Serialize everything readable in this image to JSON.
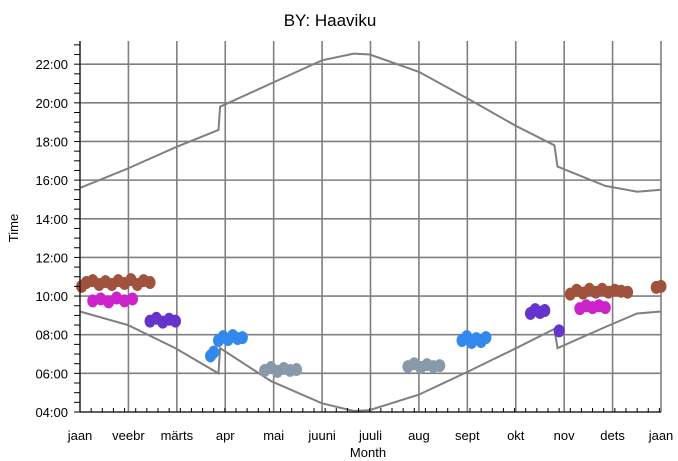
{
  "chart_data": {
    "type": "scatter",
    "title": "BY: Haaviku",
    "xlabel": "Month",
    "ylabel": "Time",
    "x_ticks": [
      "jaan",
      "veebr",
      "märts",
      "apr",
      "mai",
      "juuni",
      "juuli",
      "aug",
      "sept",
      "okt",
      "nov",
      "dets",
      "jaan"
    ],
    "y_ticks": [
      "04:00",
      "06:00",
      "08:00",
      "10:00",
      "12:00",
      "14:00",
      "16:00",
      "18:00",
      "20:00",
      "22:00"
    ],
    "xlim_days": [
      0,
      365
    ],
    "ylim_hours": [
      4,
      23.2
    ],
    "grid": true,
    "colors": {
      "grid": "#7f7f7f",
      "curves": "#7f7f7f",
      "brown": "#a0523c",
      "magenta": "#cc22cc",
      "purple": "#6633cc",
      "blue": "#3388ee",
      "gray": "#8899aa"
    },
    "sunset_curve": [
      [
        0,
        15.6
      ],
      [
        30,
        16.6
      ],
      [
        60,
        17.7
      ],
      [
        87,
        18.6
      ],
      [
        88,
        19.8
      ],
      [
        120,
        21.0
      ],
      [
        152,
        22.2
      ],
      [
        172,
        22.55
      ],
      [
        182,
        22.5
      ],
      [
        213,
        21.6
      ],
      [
        244,
        20.2
      ],
      [
        274,
        18.8
      ],
      [
        298,
        17.8
      ],
      [
        300,
        16.7
      ],
      [
        330,
        15.7
      ],
      [
        350,
        15.4
      ],
      [
        365,
        15.5
      ]
    ],
    "sunrise_curve": [
      [
        0,
        9.2
      ],
      [
        30,
        8.5
      ],
      [
        60,
        7.3
      ],
      [
        87,
        6.0
      ],
      [
        88,
        7.3
      ],
      [
        120,
        5.6
      ],
      [
        152,
        4.45
      ],
      [
        172,
        4.05
      ],
      [
        182,
        4.1
      ],
      [
        213,
        4.9
      ],
      [
        244,
        6.1
      ],
      [
        274,
        7.3
      ],
      [
        298,
        8.3
      ],
      [
        300,
        7.3
      ],
      [
        330,
        8.4
      ],
      [
        350,
        9.1
      ],
      [
        365,
        9.2
      ]
    ],
    "series": [
      {
        "color": "brown",
        "points": [
          [
            1,
            10.5
          ],
          [
            4,
            10.7
          ],
          [
            8,
            10.8
          ],
          [
            12,
            10.6
          ],
          [
            16,
            10.75
          ],
          [
            20,
            10.6
          ],
          [
            24,
            10.8
          ],
          [
            28,
            10.65
          ],
          [
            32,
            10.85
          ],
          [
            36,
            10.6
          ],
          [
            40,
            10.8
          ],
          [
            44,
            10.7
          ]
        ]
      },
      {
        "color": "magenta",
        "points": [
          [
            8,
            9.75
          ],
          [
            13,
            9.85
          ],
          [
            18,
            9.7
          ],
          [
            23,
            9.9
          ],
          [
            28,
            9.75
          ],
          [
            33,
            9.85
          ]
        ]
      },
      {
        "color": "purple",
        "points": [
          [
            44,
            8.7
          ],
          [
            48,
            8.85
          ],
          [
            52,
            8.65
          ],
          [
            56,
            8.8
          ],
          [
            60,
            8.7
          ]
        ]
      },
      {
        "color": "blue",
        "points": [
          [
            82,
            6.9
          ],
          [
            84,
            7.1
          ]
        ]
      },
      {
        "color": "blue",
        "points": [
          [
            87,
            7.7
          ],
          [
            90,
            7.9
          ],
          [
            93,
            7.75
          ],
          [
            96,
            7.95
          ],
          [
            99,
            7.8
          ],
          [
            102,
            7.85
          ]
        ]
      },
      {
        "color": "gray",
        "points": [
          [
            116,
            6.15
          ],
          [
            120,
            6.3
          ],
          [
            124,
            6.1
          ],
          [
            128,
            6.25
          ],
          [
            132,
            6.15
          ],
          [
            136,
            6.2
          ]
        ]
      },
      {
        "color": "gray",
        "points": [
          [
            206,
            6.35
          ],
          [
            210,
            6.5
          ],
          [
            214,
            6.3
          ],
          [
            218,
            6.45
          ],
          [
            222,
            6.35
          ],
          [
            226,
            6.4
          ]
        ]
      },
      {
        "color": "blue",
        "points": [
          [
            240,
            7.7
          ],
          [
            243,
            7.9
          ],
          [
            246,
            7.6
          ],
          [
            249,
            7.8
          ],
          [
            252,
            7.65
          ],
          [
            255,
            7.85
          ]
        ]
      },
      {
        "color": "purple",
        "points": [
          [
            283,
            9.1
          ],
          [
            286,
            9.3
          ],
          [
            289,
            9.15
          ],
          [
            292,
            9.25
          ]
        ]
      },
      {
        "color": "purple",
        "points": [
          [
            301,
            8.2
          ]
        ]
      },
      {
        "color": "brown",
        "points": [
          [
            308,
            10.1
          ],
          [
            312,
            10.3
          ],
          [
            316,
            10.15
          ],
          [
            320,
            10.35
          ],
          [
            324,
            10.2
          ],
          [
            328,
            10.35
          ],
          [
            332,
            10.2
          ],
          [
            336,
            10.3
          ],
          [
            340,
            10.25
          ],
          [
            344,
            10.2
          ]
        ]
      },
      {
        "color": "magenta",
        "points": [
          [
            314,
            9.35
          ],
          [
            318,
            9.5
          ],
          [
            322,
            9.4
          ],
          [
            326,
            9.5
          ],
          [
            330,
            9.4
          ]
        ]
      },
      {
        "color": "brown",
        "points": [
          [
            362,
            10.45
          ],
          [
            365,
            10.5
          ]
        ]
      }
    ]
  }
}
